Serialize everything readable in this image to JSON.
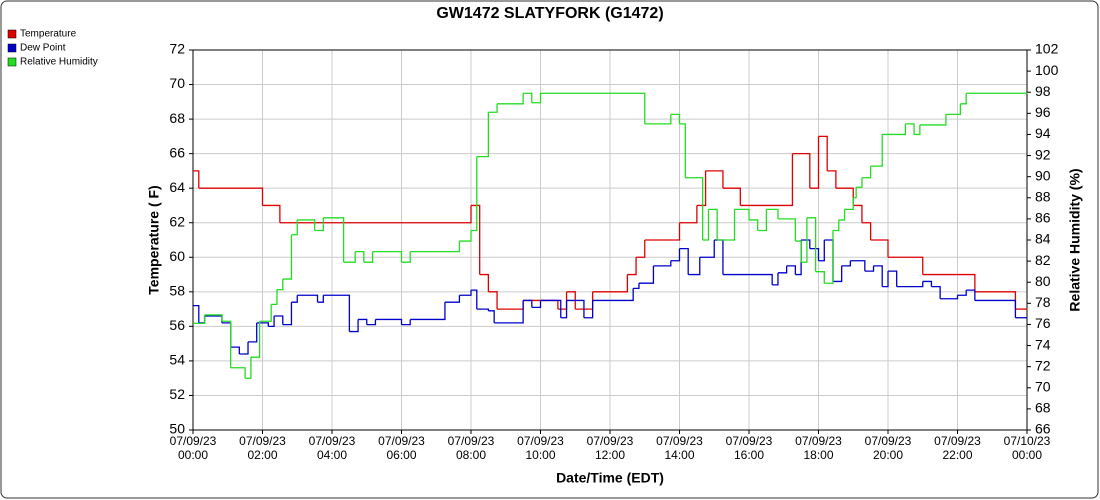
{
  "chart_data": {
    "type": "step-line",
    "title": "GW1472 SLATYFORK (G1472)",
    "xlabel": "Date/Time (EDT)",
    "ylabel": "Temperature ( F)",
    "y2label": "Relative Humidity (%)",
    "xlim": [
      "07/09/23 00:00",
      "07/10/23 00:00"
    ],
    "xticks": [
      "07/09/23 00:00",
      "07/09/23 02:00",
      "07/09/23 04:00",
      "07/09/23 06:00",
      "07/09/23 08:00",
      "07/09/23 10:00",
      "07/09/23 12:00",
      "07/09/23 14:00",
      "07/09/23 16:00",
      "07/09/23 18:00",
      "07/09/23 20:00",
      "07/09/23 22:00",
      "07/10/23 00:00"
    ],
    "ylim": [
      50,
      72
    ],
    "yticks": [
      50,
      52,
      54,
      56,
      58,
      60,
      62,
      64,
      66,
      68,
      70,
      72
    ],
    "y2lim": [
      66,
      102
    ],
    "y2ticks": [
      66,
      68,
      70,
      72,
      74,
      76,
      78,
      80,
      82,
      84,
      86,
      88,
      90,
      92,
      94,
      96,
      98,
      100,
      102
    ],
    "grid": true,
    "legend": "top-left",
    "series": [
      {
        "name": "Temperature",
        "color": "#dd0000",
        "x": [
          "07/09/23 00:00",
          "07/09/23 00:10",
          "07/09/23 02:00",
          "07/09/23 02:30",
          "07/09/23 08:00",
          "07/09/23 08:15",
          "07/09/23 08:30",
          "07/09/23 08:45",
          "07/09/23 09:30",
          "07/09/23 10:30",
          "07/09/23 10:45",
          "07/09/23 11:00",
          "07/09/23 11:30",
          "07/09/23 12:30",
          "07/09/23 12:45",
          "07/09/23 13:00",
          "07/09/23 14:00",
          "07/09/23 14:30",
          "07/09/23 14:45",
          "07/09/23 15:15",
          "07/09/23 15:45",
          "07/09/23 17:15",
          "07/09/23 17:45",
          "07/09/23 18:00",
          "07/09/23 18:15",
          "07/09/23 18:30",
          "07/09/23 19:00",
          "07/09/23 19:15",
          "07/09/23 19:30",
          "07/09/23 20:00",
          "07/09/23 21:00",
          "07/09/23 22:30",
          "07/09/23 23:40",
          "07/10/23 00:00"
        ],
        "values": [
          65,
          64,
          63,
          62,
          63,
          59,
          58,
          57,
          57.5,
          57,
          58,
          57,
          58,
          59,
          60,
          61,
          62,
          63,
          65,
          64,
          63,
          66,
          64,
          67,
          65,
          64,
          63,
          62,
          61,
          60,
          59,
          58,
          57,
          57
        ]
      },
      {
        "name": "Dew Point",
        "color": "#0000cc",
        "x": [
          "07/09/23 00:00",
          "07/09/23 00:10",
          "07/09/23 00:20",
          "07/09/23 00:50",
          "07/09/23 01:05",
          "07/09/23 01:20",
          "07/09/23 01:35",
          "07/09/23 01:50",
          "07/09/23 02:10",
          "07/09/23 02:20",
          "07/09/23 02:35",
          "07/09/23 02:50",
          "07/09/23 03:00",
          "07/09/23 03:35",
          "07/09/23 03:45",
          "07/09/23 04:30",
          "07/09/23 04:45",
          "07/09/23 05:00",
          "07/09/23 05:15",
          "07/09/23 06:00",
          "07/09/23 06:15",
          "07/09/23 07:15",
          "07/09/23 07:40",
          "07/09/23 08:00",
          "07/09/23 08:10",
          "07/09/23 08:30",
          "07/09/23 08:40",
          "07/09/23 09:30",
          "07/09/23 09:45",
          "07/09/23 10:00",
          "07/09/23 10:35",
          "07/09/23 10:45",
          "07/09/23 11:15",
          "07/09/23 11:30",
          "07/09/23 12:30",
          "07/09/23 12:40",
          "07/09/23 12:50",
          "07/09/23 13:15",
          "07/09/23 13:45",
          "07/09/23 14:00",
          "07/09/23 14:15",
          "07/09/23 14:35",
          "07/09/23 15:00",
          "07/09/23 15:15",
          "07/09/23 16:40",
          "07/09/23 16:50",
          "07/09/23 17:05",
          "07/09/23 17:20",
          "07/09/23 17:30",
          "07/09/23 17:45",
          "07/09/23 18:00",
          "07/09/23 18:10",
          "07/09/23 18:25",
          "07/09/23 18:40",
          "07/09/23 18:55",
          "07/09/23 19:20",
          "07/09/23 19:35",
          "07/09/23 19:50",
          "07/09/23 20:00",
          "07/09/23 20:15",
          "07/09/23 21:00",
          "07/09/23 21:15",
          "07/09/23 21:30",
          "07/09/23 22:00",
          "07/09/23 22:15",
          "07/09/23 22:30",
          "07/09/23 23:40",
          "07/10/23 00:00"
        ],
        "values": [
          57.2,
          56.2,
          56.6,
          56.2,
          54.8,
          54.4,
          55.1,
          56.2,
          56.0,
          56.6,
          56.1,
          57.4,
          57.8,
          57.4,
          57.8,
          55.7,
          56.4,
          56.1,
          56.4,
          56.1,
          56.4,
          57.4,
          57.8,
          58.1,
          57.0,
          56.9,
          56.2,
          57.5,
          57.1,
          57.5,
          56.5,
          57.5,
          56.5,
          57.5,
          57.5,
          58.2,
          58.5,
          59.5,
          59.8,
          60.5,
          59.0,
          60.0,
          61.0,
          59.0,
          58.4,
          59.1,
          59.5,
          59.0,
          61.0,
          60.5,
          59.8,
          61.0,
          58.6,
          59.5,
          59.8,
          59.2,
          59.5,
          58.3,
          59.2,
          58.3,
          58.6,
          58.3,
          57.6,
          57.8,
          58.1,
          57.5,
          56.5,
          56.5
        ]
      },
      {
        "name": "Relative Humidity",
        "color": "#22dd22",
        "axis": "y2",
        "x": [
          "07/09/23 00:00",
          "07/09/23 00:20",
          "07/09/23 00:50",
          "07/09/23 01:05",
          "07/09/23 01:30",
          "07/09/23 01:40",
          "07/09/23 01:55",
          "07/09/23 02:15",
          "07/09/23 02:25",
          "07/09/23 02:35",
          "07/09/23 02:50",
          "07/09/23 03:00",
          "07/09/23 03:30",
          "07/09/23 03:45",
          "07/09/23 04:20",
          "07/09/23 04:40",
          "07/09/23 04:55",
          "07/09/23 05:10",
          "07/09/23 06:00",
          "07/09/23 06:15",
          "07/09/23 07:40",
          "07/09/23 08:00",
          "07/09/23 08:10",
          "07/09/23 08:30",
          "07/09/23 08:45",
          "07/09/23 09:30",
          "07/09/23 09:45",
          "07/09/23 10:00",
          "07/09/23 13:00",
          "07/09/23 13:45",
          "07/09/23 14:00",
          "07/09/23 14:10",
          "07/09/23 14:40",
          "07/09/23 14:50",
          "07/09/23 15:05",
          "07/09/23 15:35",
          "07/09/23 16:00",
          "07/09/23 16:15",
          "07/09/23 16:30",
          "07/09/23 16:50",
          "07/09/23 17:20",
          "07/09/23 17:30",
          "07/09/23 17:40",
          "07/09/23 17:55",
          "07/09/23 18:10",
          "07/09/23 18:25",
          "07/09/23 18:35",
          "07/09/23 18:45",
          "07/09/23 19:00",
          "07/09/23 19:05",
          "07/09/23 19:15",
          "07/09/23 19:30",
          "07/09/23 19:50",
          "07/09/23 20:30",
          "07/09/23 20:45",
          "07/09/23 20:55",
          "07/09/23 21:40",
          "07/09/23 22:05",
          "07/09/23 22:15",
          "07/10/23 00:00"
        ],
        "values": [
          76.1,
          76.9,
          76.3,
          71.9,
          70.9,
          72.9,
          76.3,
          77.9,
          79.3,
          80.3,
          84.5,
          85.9,
          84.9,
          86.1,
          81.9,
          82.9,
          81.9,
          82.9,
          81.9,
          82.9,
          83.9,
          84.9,
          91.9,
          96.1,
          96.9,
          97.9,
          97.0,
          97.9,
          95.0,
          95.9,
          95.0,
          89.9,
          84.0,
          86.9,
          84.0,
          86.9,
          85.9,
          84.9,
          86.9,
          86.0,
          83.9,
          81.9,
          86.1,
          81.0,
          79.9,
          84.9,
          85.9,
          86.9,
          88.0,
          89.0,
          89.9,
          91.0,
          94.0,
          95.0,
          94.0,
          94.9,
          95.9,
          96.9,
          97.9,
          97.9
        ]
      }
    ]
  }
}
